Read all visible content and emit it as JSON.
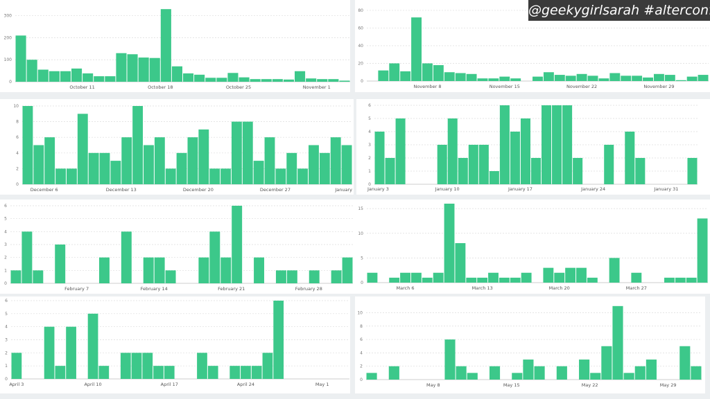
{
  "watermark": "@geekygirlsarah #alterconf",
  "chart_data": [
    {
      "type": "bar",
      "ylim": [
        0,
        340
      ],
      "yticks": [
        0,
        100,
        200,
        300
      ],
      "x_labels": [
        {
          "label": "October 11",
          "index": 5.5
        },
        {
          "label": "October 18",
          "index": 12.5
        },
        {
          "label": "October 25",
          "index": 19.5
        },
        {
          "label": "November 1",
          "index": 26.5
        }
      ],
      "values": [
        210,
        100,
        55,
        48,
        48,
        60,
        38,
        25,
        25,
        130,
        125,
        110,
        108,
        330,
        70,
        38,
        32,
        18,
        18,
        40,
        20,
        12,
        12,
        12,
        10,
        48,
        15,
        12,
        12,
        5
      ]
    },
    {
      "type": "bar",
      "ylim": [
        0,
        87
      ],
      "yticks": [
        0,
        20,
        40,
        60,
        80
      ],
      "x_labels": [
        {
          "label": "November 8",
          "index": 5
        },
        {
          "label": "November 15",
          "index": 12
        },
        {
          "label": "November 22",
          "index": 19
        },
        {
          "label": "November 29",
          "index": 26
        }
      ],
      "values": [
        0,
        12,
        20,
        11,
        72,
        20,
        18,
        10,
        9,
        8,
        3,
        3,
        5,
        3,
        0,
        5,
        10,
        7,
        6,
        8,
        6,
        3,
        9,
        6,
        6,
        4,
        8,
        7,
        1,
        5,
        7
      ]
    },
    {
      "type": "bar",
      "ylim": [
        0,
        10
      ],
      "yticks": [
        0,
        2,
        4,
        6,
        8,
        10
      ],
      "x_labels": [
        {
          "label": "December 6",
          "index": 1.5
        },
        {
          "label": "December 13",
          "index": 8.5
        },
        {
          "label": "December 20",
          "index": 15.5
        },
        {
          "label": "December 27",
          "index": 22.5
        },
        {
          "label": "January",
          "index": 29.5
        }
      ],
      "values": [
        10,
        5,
        6,
        2,
        2,
        9,
        4,
        4,
        3,
        6,
        10,
        5,
        6,
        2,
        4,
        6,
        7,
        2,
        2,
        8,
        8,
        3,
        6,
        2,
        4,
        2,
        5,
        4,
        6,
        5
      ]
    },
    {
      "type": "bar",
      "ylim": [
        0,
        6
      ],
      "yticks": [
        0,
        1,
        2,
        3,
        4,
        5,
        6
      ],
      "x_labels": [
        {
          "label": "January 3",
          "index": -0.5
        },
        {
          "label": "January 10",
          "index": 6.5
        },
        {
          "label": "January 17",
          "index": 13.5
        },
        {
          "label": "January 24",
          "index": 20.5
        },
        {
          "label": "January 31",
          "index": 27.5
        }
      ],
      "values": [
        4,
        2,
        5,
        0,
        0,
        0,
        3,
        5,
        2,
        3,
        3,
        1,
        6,
        4,
        5,
        2,
        6,
        6,
        6,
        2,
        0,
        0,
        3,
        0,
        4,
        2,
        0,
        0,
        0,
        0,
        2
      ]
    },
    {
      "type": "bar",
      "ylim": [
        0,
        6
      ],
      "yticks": [
        0,
        1,
        2,
        3,
        4,
        5,
        6
      ],
      "x_labels": [
        {
          "label": "February 7",
          "index": 5.5
        },
        {
          "label": "February 14",
          "index": 12.5
        },
        {
          "label": "February 21",
          "index": 19.5
        },
        {
          "label": "February 28",
          "index": 26.5
        }
      ],
      "values": [
        1,
        4,
        1,
        0,
        3,
        0,
        0,
        0,
        2,
        0,
        4,
        0,
        2,
        2,
        1,
        0,
        0,
        2,
        4,
        2,
        6,
        0,
        2,
        0,
        1,
        1,
        0,
        1,
        0,
        1,
        2
      ]
    },
    {
      "type": "bar",
      "ylim": [
        0,
        16
      ],
      "yticks": [
        0,
        5,
        10,
        15
      ],
      "x_labels": [
        {
          "label": "March 6",
          "index": 3
        },
        {
          "label": "March 13",
          "index": 10
        },
        {
          "label": "March 20",
          "index": 17
        },
        {
          "label": "March 27",
          "index": 24
        }
      ],
      "values": [
        2,
        0,
        1,
        2,
        2,
        1,
        2,
        16,
        8,
        1,
        1,
        2,
        1,
        1,
        2,
        0,
        3,
        2,
        3,
        3,
        1,
        0,
        5,
        0,
        2,
        0,
        0,
        1,
        1,
        1,
        13
      ]
    },
    {
      "type": "bar",
      "ylim": [
        0,
        6
      ],
      "yticks": [
        0,
        1,
        2,
        3,
        4,
        5,
        6
      ],
      "x_labels": [
        {
          "label": "April 3",
          "index": 0
        },
        {
          "label": "April 10",
          "index": 7
        },
        {
          "label": "April 17",
          "index": 14
        },
        {
          "label": "April 24",
          "index": 21
        },
        {
          "label": "May 1",
          "index": 28
        }
      ],
      "values": [
        2,
        0,
        0,
        4,
        1,
        4,
        0,
        5,
        1,
        0,
        2,
        2,
        2,
        1,
        1,
        0,
        0,
        2,
        1,
        0,
        1,
        1,
        1,
        2,
        6,
        0,
        0,
        0,
        0,
        0,
        0
      ]
    },
    {
      "type": "bar",
      "ylim": [
        0,
        11.5
      ],
      "yticks": [
        0,
        2,
        4,
        6,
        8,
        10
      ],
      "x_labels": [
        {
          "label": "May 8",
          "index": 5.5
        },
        {
          "label": "May 15",
          "index": 12.5
        },
        {
          "label": "May 22",
          "index": 19.5
        },
        {
          "label": "May 29",
          "index": 26.5
        }
      ],
      "values": [
        1,
        0,
        2,
        0,
        0,
        0,
        0,
        6,
        2,
        1,
        0,
        2,
        0,
        1,
        3,
        2,
        0,
        2,
        0,
        3,
        1,
        5,
        11,
        1,
        2,
        3,
        0,
        0,
        5,
        2
      ]
    }
  ]
}
